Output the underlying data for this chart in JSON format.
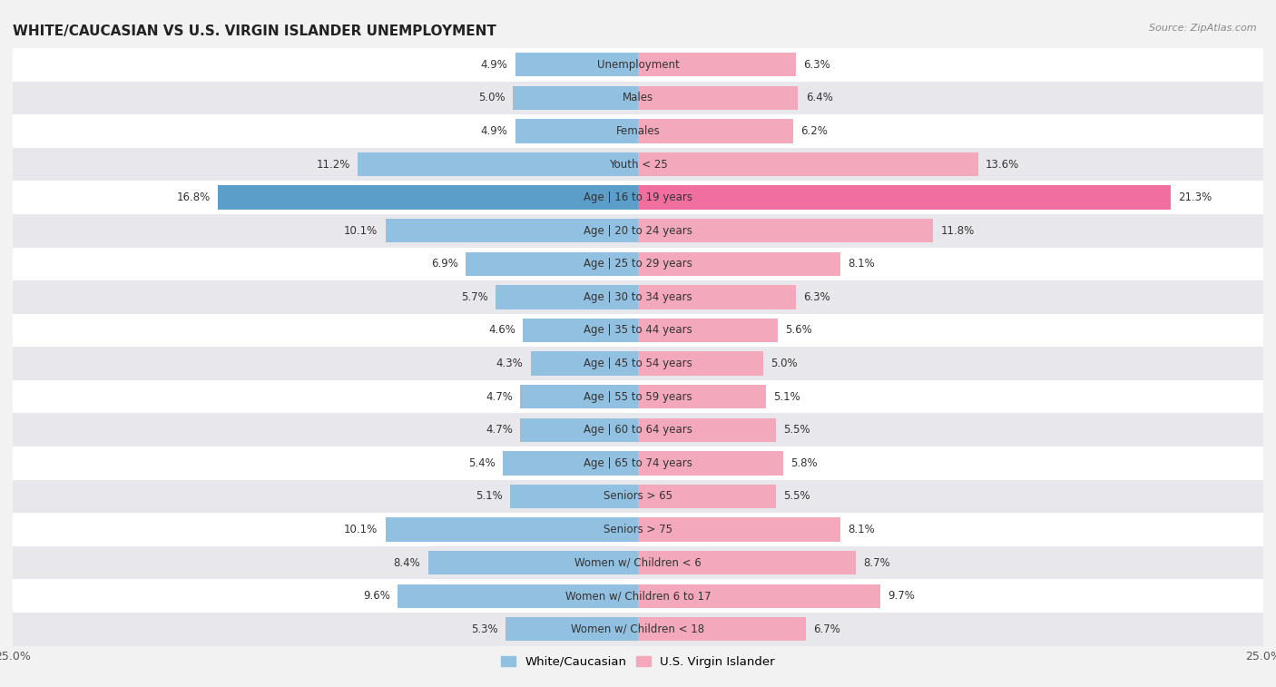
{
  "title": "WHITE/CAUCASIAN VS U.S. VIRGIN ISLANDER UNEMPLOYMENT",
  "source": "Source: ZipAtlas.com",
  "categories": [
    "Unemployment",
    "Males",
    "Females",
    "Youth < 25",
    "Age | 16 to 19 years",
    "Age | 20 to 24 years",
    "Age | 25 to 29 years",
    "Age | 30 to 34 years",
    "Age | 35 to 44 years",
    "Age | 45 to 54 years",
    "Age | 55 to 59 years",
    "Age | 60 to 64 years",
    "Age | 65 to 74 years",
    "Seniors > 65",
    "Seniors > 75",
    "Women w/ Children < 6",
    "Women w/ Children 6 to 17",
    "Women w/ Children < 18"
  ],
  "white_values": [
    4.9,
    5.0,
    4.9,
    11.2,
    16.8,
    10.1,
    6.9,
    5.7,
    4.6,
    4.3,
    4.7,
    4.7,
    5.4,
    5.1,
    10.1,
    8.4,
    9.6,
    5.3
  ],
  "virgin_values": [
    6.3,
    6.4,
    6.2,
    13.6,
    21.3,
    11.8,
    8.1,
    6.3,
    5.6,
    5.0,
    5.1,
    5.5,
    5.8,
    5.5,
    8.1,
    8.7,
    9.7,
    6.7
  ],
  "white_color": "#92c0e0",
  "virgin_color": "#f4a8bc",
  "highlight_white_color": "#5b9ec9",
  "highlight_virgin_color": "#f06fa0",
  "xlim": 25.0,
  "bar_height": 0.72,
  "row_colors": [
    "#ffffff",
    "#e8e8ec"
  ],
  "label_fontsize": 8.5,
  "value_fontsize": 8.5,
  "title_fontsize": 11,
  "legend_white": "White/Caucasian",
  "legend_virgin": "U.S. Virgin Islander"
}
